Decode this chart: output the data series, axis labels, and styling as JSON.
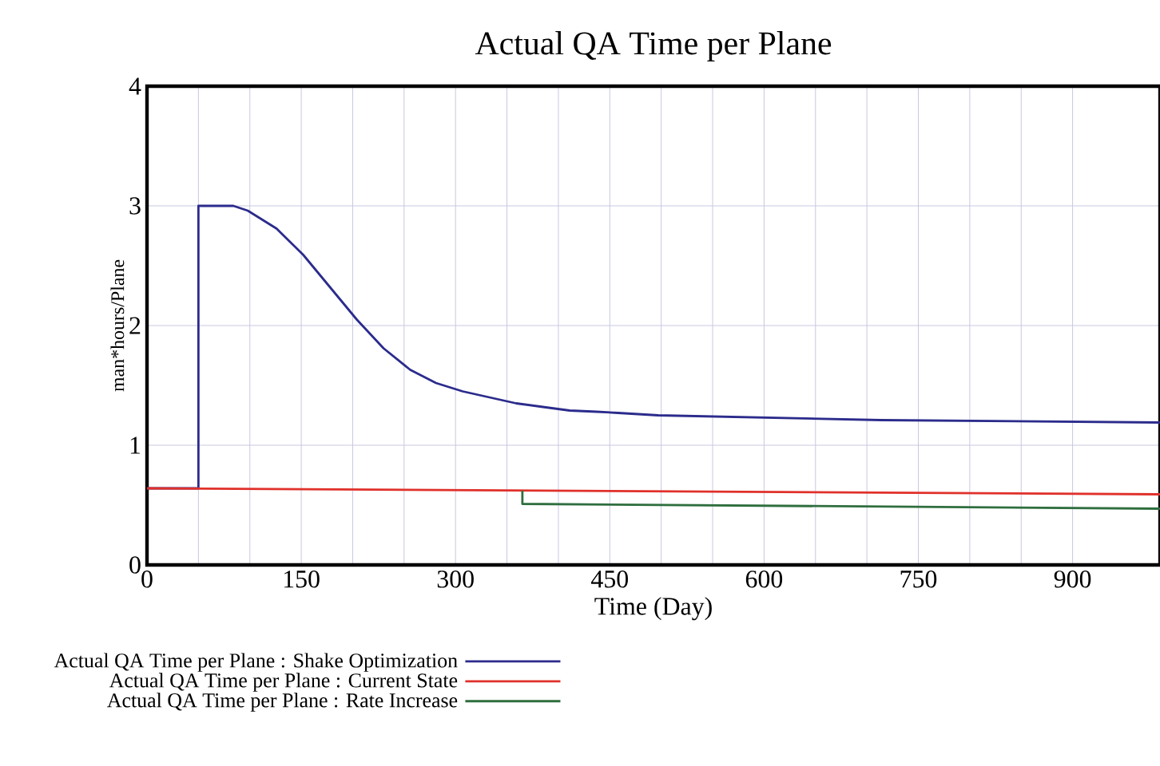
{
  "chart_data": {
    "type": "line",
    "title": "Actual QA Time per Plane",
    "xlabel": "Time (Day)",
    "ylabel": "man*hours/Plane",
    "xlim": [
      0,
      985
    ],
    "ylim": [
      0,
      4
    ],
    "xticks": [
      0,
      150,
      300,
      450,
      600,
      750,
      900
    ],
    "yticks": [
      0,
      1,
      2,
      3,
      4
    ],
    "grid": true,
    "legend": "bottom",
    "marker": "none",
    "line_style": "solid",
    "series": [
      {
        "name": "Actual QA Time per Plane : Shake Optimization",
        "color": "#2b2b8c",
        "x": [
          0,
          50,
          50,
          84,
          98,
          126,
          152,
          178,
          204,
          230,
          256,
          281,
          307,
          333,
          359,
          385,
          411,
          437,
          458,
          497,
          714,
          985
        ],
        "values": [
          0.64,
          0.64,
          3.0,
          3.0,
          2.96,
          2.81,
          2.59,
          2.32,
          2.05,
          1.81,
          1.63,
          1.52,
          1.45,
          1.4,
          1.35,
          1.32,
          1.29,
          1.28,
          1.27,
          1.25,
          1.21,
          1.19
        ]
      },
      {
        "name": "Actual QA Time per Plane : Current State",
        "color": "#e0302a",
        "x": [
          0,
          985
        ],
        "values": [
          0.64,
          0.59
        ]
      },
      {
        "name": "Actual QA Time per Plane : Rate Increase",
        "color": "#2e6e3e",
        "x": [
          365,
          365,
          985
        ],
        "values": [
          0.62,
          0.51,
          0.47
        ]
      }
    ]
  }
}
